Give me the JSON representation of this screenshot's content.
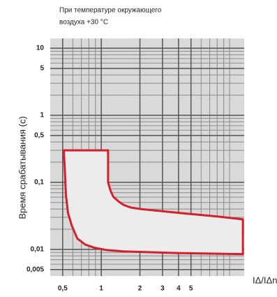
{
  "chart_data": {
    "type": "area",
    "title_lines": [
      "При температуре окружающего",
      "воздуха +30 °C"
    ],
    "ylabel": "Время срабатывания (с)",
    "xlabel": "IΔ/IΔn",
    "log_x": true,
    "log_y": true,
    "grid": true,
    "color": "#d4202a",
    "fill": "#ececec",
    "x": [
      0.51,
      1.13,
      1.13,
      1.18,
      1.24,
      1.36,
      1.49,
      1.7,
      2.03,
      4,
      8,
      12.7,
      12.7,
      4,
      1.5,
      1.09,
      0.88,
      0.75,
      0.65,
      0.59,
      0.55,
      0.53,
      0.52
    ],
    "values": [
      0.3,
      0.3,
      0.1,
      0.075,
      0.061,
      0.052,
      0.046,
      0.042,
      0.04,
      0.035,
      0.031,
      0.028,
      0.0085,
      0.0088,
      0.0093,
      0.0098,
      0.0106,
      0.0118,
      0.0145,
      0.0224,
      0.035,
      0.065,
      0.15
    ],
    "xlim": [
      0.4,
      13
    ],
    "ylim": [
      0.004,
      14
    ],
    "xticks": [
      {
        "value": 0.5,
        "label": "0,5"
      },
      1,
      2,
      3,
      4,
      5
    ],
    "yticks": [
      10,
      5,
      1,
      {
        "value": 0.5,
        "label": "0,5"
      },
      {
        "value": 0.1,
        "label": "0,1"
      },
      {
        "value": 0.01,
        "label": "0,01"
      },
      {
        "value": 0.005,
        "label": "0,005"
      }
    ]
  }
}
